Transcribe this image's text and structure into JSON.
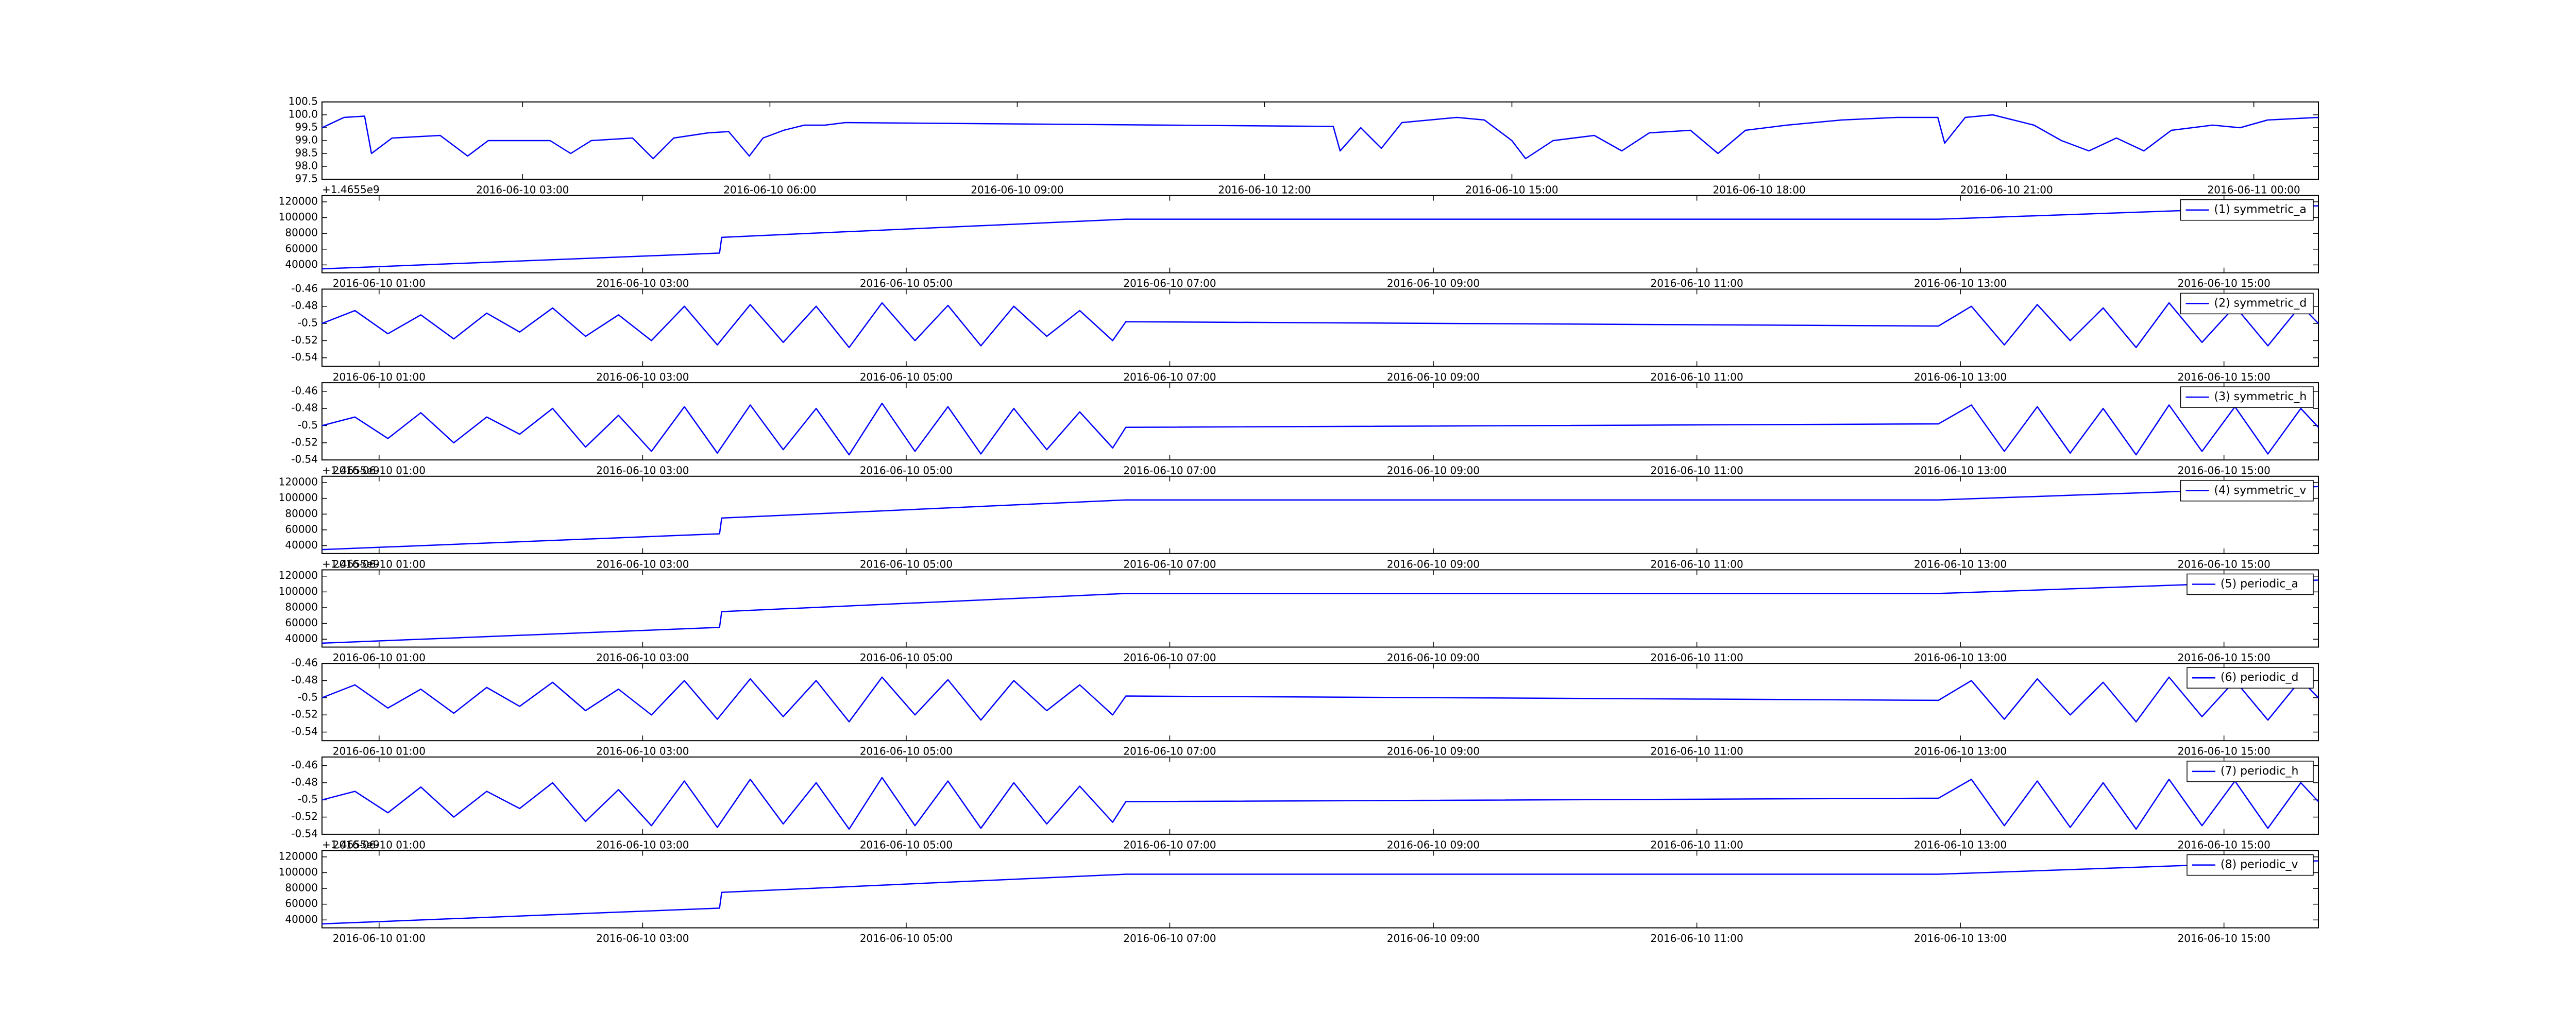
{
  "chart_data": [
    {
      "type": "line",
      "x": [
        "2016-06-10 00:34",
        "2016-06-10 00:50",
        "2016-06-10 01:05",
        "2016-06-10 01:10",
        "2016-06-10 01:25",
        "2016-06-10 02:00",
        "2016-06-10 02:20",
        "2016-06-10 02:35",
        "2016-06-10 03:20",
        "2016-06-10 03:35",
        "2016-06-10 03:50",
        "2016-06-10 04:20",
        "2016-06-10 04:35",
        "2016-06-10 04:50",
        "2016-06-10 05:15",
        "2016-06-10 05:30",
        "2016-06-10 05:45",
        "2016-06-10 05:55",
        "2016-06-10 06:10",
        "2016-06-10 06:25",
        "2016-06-10 06:40",
        "2016-06-10 06:55",
        "2016-06-10 12:50",
        "2016-06-10 12:55",
        "2016-06-10 13:10",
        "2016-06-10 13:25",
        "2016-06-10 13:40",
        "2016-06-10 14:00",
        "2016-06-10 14:20",
        "2016-06-10 14:40",
        "2016-06-10 15:00",
        "2016-06-10 15:10",
        "2016-06-10 15:30",
        "2016-06-10 16:00",
        "2016-06-10 16:20",
        "2016-06-10 16:40",
        "2016-06-10 17:10",
        "2016-06-10 17:30",
        "2016-06-10 17:50",
        "2016-06-10 18:20",
        "2016-06-10 18:40",
        "2016-06-10 19:00",
        "2016-06-10 19:40",
        "2016-06-10 20:10",
        "2016-06-10 20:15",
        "2016-06-10 20:30",
        "2016-06-10 20:50",
        "2016-06-10 21:20",
        "2016-06-10 21:40",
        "2016-06-10 22:00",
        "2016-06-10 22:20",
        "2016-06-10 22:40",
        "2016-06-10 23:00",
        "2016-06-10 23:30",
        "2016-06-10 23:50",
        "2016-06-11 00:10",
        "2016-06-11 00:47"
      ],
      "series": [
        {
          "color": "#0000ff",
          "values": [
            99.5,
            99.9,
            99.95,
            98.5,
            99.1,
            99.2,
            98.4,
            99.0,
            99.0,
            98.5,
            99.0,
            99.1,
            98.3,
            99.1,
            99.3,
            99.35,
            98.4,
            99.1,
            99.4,
            99.6,
            99.6,
            99.7,
            99.55,
            98.6,
            99.5,
            98.7,
            99.7,
            99.8,
            99.9,
            99.8,
            99.0,
            98.3,
            99.0,
            99.2,
            98.6,
            99.3,
            99.4,
            98.5,
            99.4,
            99.6,
            99.7,
            99.8,
            99.9,
            99.9,
            98.9,
            99.9,
            100.0,
            99.6,
            99.0,
            98.6,
            99.1,
            98.6,
            99.4,
            99.6,
            99.5,
            99.8,
            99.9
          ]
        }
      ],
      "xlim": [
        "2016-06-10 00:34",
        "2016-06-11 00:47"
      ],
      "xticks": [
        "2016-06-10 03:00",
        "2016-06-10 06:00",
        "2016-06-10 09:00",
        "2016-06-10 12:00",
        "2016-06-10 15:00",
        "2016-06-10 18:00",
        "2016-06-10 21:00",
        "2016-06-11 00:00"
      ],
      "ylim": [
        97.5,
        100.5
      ],
      "yticks": [
        97.5,
        {
          "value": 98,
          "label": "98.0"
        },
        98.5,
        {
          "value": 99,
          "label": "99.0"
        },
        99.5,
        {
          "value": 100,
          "label": "100.0"
        },
        100.5
      ]
    },
    {
      "type": "line",
      "y_offset_label": "+1.4655e9",
      "legend": "upper right",
      "x": [
        "2016-06-10 00:34",
        "2016-06-10 03:35",
        "2016-06-10 03:36",
        "2016-06-10 06:40",
        "2016-06-10 12:50",
        "2016-06-10 15:43"
      ],
      "series": [
        {
          "name": "(1) symmetric_a",
          "color": "#0000ff",
          "values": [
            35000,
            55000,
            75000,
            98000,
            98000,
            115000
          ]
        }
      ],
      "xlim": [
        "2016-06-10 00:34",
        "2016-06-10 15:43"
      ],
      "xticks": [
        "2016-06-10 01:00",
        "2016-06-10 03:00",
        "2016-06-10 05:00",
        "2016-06-10 07:00",
        "2016-06-10 09:00",
        "2016-06-10 11:00",
        "2016-06-10 13:00",
        "2016-06-10 15:00"
      ],
      "ylim": [
        30000,
        128000
      ],
      "yticks": [
        40000,
        60000,
        80000,
        100000,
        120000
      ]
    },
    {
      "type": "line",
      "legend": "upper right",
      "x": [
        "2016-06-10 00:34",
        "2016-06-10 00:49",
        "2016-06-10 01:04",
        "2016-06-10 01:19",
        "2016-06-10 01:34",
        "2016-06-10 01:49",
        "2016-06-10 02:04",
        "2016-06-10 02:19",
        "2016-06-10 02:34",
        "2016-06-10 02:49",
        "2016-06-10 03:04",
        "2016-06-10 03:19",
        "2016-06-10 03:34",
        "2016-06-10 03:49",
        "2016-06-10 04:04",
        "2016-06-10 04:19",
        "2016-06-10 04:34",
        "2016-06-10 04:49",
        "2016-06-10 05:04",
        "2016-06-10 05:19",
        "2016-06-10 05:34",
        "2016-06-10 05:49",
        "2016-06-10 06:04",
        "2016-06-10 06:19",
        "2016-06-10 06:34",
        "2016-06-10 06:40",
        "2016-06-10 12:50",
        "2016-06-10 13:05",
        "2016-06-10 13:20",
        "2016-06-10 13:35",
        "2016-06-10 13:50",
        "2016-06-10 14:05",
        "2016-06-10 14:20",
        "2016-06-10 14:35",
        "2016-06-10 14:50",
        "2016-06-10 15:05",
        "2016-06-10 15:20",
        "2016-06-10 15:35",
        "2016-06-10 15:43"
      ],
      "series": [
        {
          "name": "(2) symmetric_d",
          "color": "#0000ff",
          "values": [
            -0.5,
            -0.485,
            -0.512,
            -0.49,
            -0.518,
            -0.488,
            -0.51,
            -0.482,
            -0.515,
            -0.49,
            -0.52,
            -0.48,
            -0.525,
            -0.478,
            -0.522,
            -0.48,
            -0.528,
            -0.476,
            -0.52,
            -0.479,
            -0.526,
            -0.48,
            -0.515,
            -0.485,
            -0.52,
            -0.498,
            -0.503,
            -0.48,
            -0.525,
            -0.478,
            -0.52,
            -0.482,
            -0.528,
            -0.476,
            -0.522,
            -0.48,
            -0.526,
            -0.479,
            -0.5
          ]
        }
      ],
      "xlim": [
        "2016-06-10 00:34",
        "2016-06-10 15:43"
      ],
      "xticks": [
        "2016-06-10 01:00",
        "2016-06-10 03:00",
        "2016-06-10 05:00",
        "2016-06-10 07:00",
        "2016-06-10 09:00",
        "2016-06-10 11:00",
        "2016-06-10 13:00",
        "2016-06-10 15:00"
      ],
      "ylim": [
        -0.55,
        -0.46
      ],
      "yticks": [
        -0.54,
        -0.52,
        -0.5,
        -0.48,
        -0.46
      ]
    },
    {
      "type": "line",
      "legend": "upper right",
      "x": [
        "2016-06-10 00:34",
        "2016-06-10 00:49",
        "2016-06-10 01:04",
        "2016-06-10 01:19",
        "2016-06-10 01:34",
        "2016-06-10 01:49",
        "2016-06-10 02:04",
        "2016-06-10 02:19",
        "2016-06-10 02:34",
        "2016-06-10 02:49",
        "2016-06-10 03:04",
        "2016-06-10 03:19",
        "2016-06-10 03:34",
        "2016-06-10 03:49",
        "2016-06-10 04:04",
        "2016-06-10 04:19",
        "2016-06-10 04:34",
        "2016-06-10 04:49",
        "2016-06-10 05:04",
        "2016-06-10 05:19",
        "2016-06-10 05:34",
        "2016-06-10 05:49",
        "2016-06-10 06:04",
        "2016-06-10 06:19",
        "2016-06-10 06:34",
        "2016-06-10 06:40",
        "2016-06-10 12:50",
        "2016-06-10 13:05",
        "2016-06-10 13:20",
        "2016-06-10 13:35",
        "2016-06-10 13:50",
        "2016-06-10 14:05",
        "2016-06-10 14:20",
        "2016-06-10 14:35",
        "2016-06-10 14:50",
        "2016-06-10 15:05",
        "2016-06-10 15:20",
        "2016-06-10 15:35",
        "2016-06-10 15:43"
      ],
      "series": [
        {
          "name": "(3) symmetric_h",
          "color": "#0000ff",
          "values": [
            -0.5,
            -0.49,
            -0.515,
            -0.485,
            -0.52,
            -0.49,
            -0.51,
            -0.48,
            -0.525,
            -0.488,
            -0.53,
            -0.478,
            -0.532,
            -0.476,
            -0.528,
            -0.48,
            -0.534,
            -0.474,
            -0.53,
            -0.478,
            -0.533,
            -0.48,
            -0.528,
            -0.484,
            -0.526,
            -0.502,
            -0.498,
            -0.476,
            -0.53,
            -0.478,
            -0.532,
            -0.48,
            -0.534,
            -0.476,
            -0.53,
            -0.478,
            -0.533,
            -0.48,
            -0.502
          ]
        }
      ],
      "xlim": [
        "2016-06-10 00:34",
        "2016-06-10 15:43"
      ],
      "xticks": [
        "2016-06-10 01:00",
        "2016-06-10 03:00",
        "2016-06-10 05:00",
        "2016-06-10 07:00",
        "2016-06-10 09:00",
        "2016-06-10 11:00",
        "2016-06-10 13:00",
        "2016-06-10 15:00"
      ],
      "ylim": [
        -0.54,
        -0.45
      ],
      "yticks": [
        -0.54,
        -0.52,
        -0.5,
        -0.48,
        -0.46
      ]
    },
    {
      "type": "line",
      "y_offset_label": "+1.4655e9",
      "legend": "upper right",
      "x": [
        "2016-06-10 00:34",
        "2016-06-10 03:35",
        "2016-06-10 03:36",
        "2016-06-10 06:40",
        "2016-06-10 12:50",
        "2016-06-10 15:43"
      ],
      "series": [
        {
          "name": "(4) symmetric_v",
          "color": "#0000ff",
          "values": [
            35000,
            55000,
            75000,
            98000,
            98000,
            115000
          ]
        }
      ],
      "xlim": [
        "2016-06-10 00:34",
        "2016-06-10 15:43"
      ],
      "xticks": [
        "2016-06-10 01:00",
        "2016-06-10 03:00",
        "2016-06-10 05:00",
        "2016-06-10 07:00",
        "2016-06-10 09:00",
        "2016-06-10 11:00",
        "2016-06-10 13:00",
        "2016-06-10 15:00"
      ],
      "ylim": [
        30000,
        128000
      ],
      "yticks": [
        40000,
        60000,
        80000,
        100000,
        120000
      ]
    },
    {
      "type": "line",
      "y_offset_label": "+1.4655e9",
      "legend": "upper right",
      "x": [
        "2016-06-10 00:34",
        "2016-06-10 03:35",
        "2016-06-10 03:36",
        "2016-06-10 06:40",
        "2016-06-10 12:50",
        "2016-06-10 15:43"
      ],
      "series": [
        {
          "name": "(5) periodic_a",
          "color": "#0000ff",
          "values": [
            35000,
            55000,
            75000,
            98000,
            98000,
            115000
          ]
        }
      ],
      "xlim": [
        "2016-06-10 00:34",
        "2016-06-10 15:43"
      ],
      "xticks": [
        "2016-06-10 01:00",
        "2016-06-10 03:00",
        "2016-06-10 05:00",
        "2016-06-10 07:00",
        "2016-06-10 09:00",
        "2016-06-10 11:00",
        "2016-06-10 13:00",
        "2016-06-10 15:00"
      ],
      "ylim": [
        30000,
        128000
      ],
      "yticks": [
        40000,
        60000,
        80000,
        100000,
        120000
      ]
    },
    {
      "type": "line",
      "legend": "upper right",
      "x": [
        "2016-06-10 00:34",
        "2016-06-10 00:49",
        "2016-06-10 01:04",
        "2016-06-10 01:19",
        "2016-06-10 01:34",
        "2016-06-10 01:49",
        "2016-06-10 02:04",
        "2016-06-10 02:19",
        "2016-06-10 02:34",
        "2016-06-10 02:49",
        "2016-06-10 03:04",
        "2016-06-10 03:19",
        "2016-06-10 03:34",
        "2016-06-10 03:49",
        "2016-06-10 04:04",
        "2016-06-10 04:19",
        "2016-06-10 04:34",
        "2016-06-10 04:49",
        "2016-06-10 05:04",
        "2016-06-10 05:19",
        "2016-06-10 05:34",
        "2016-06-10 05:49",
        "2016-06-10 06:04",
        "2016-06-10 06:19",
        "2016-06-10 06:34",
        "2016-06-10 06:40",
        "2016-06-10 12:50",
        "2016-06-10 13:05",
        "2016-06-10 13:20",
        "2016-06-10 13:35",
        "2016-06-10 13:50",
        "2016-06-10 14:05",
        "2016-06-10 14:20",
        "2016-06-10 14:35",
        "2016-06-10 14:50",
        "2016-06-10 15:05",
        "2016-06-10 15:20",
        "2016-06-10 15:35",
        "2016-06-10 15:43"
      ],
      "series": [
        {
          "name": "(6) periodic_d",
          "color": "#0000ff",
          "values": [
            -0.5,
            -0.485,
            -0.512,
            -0.49,
            -0.518,
            -0.488,
            -0.51,
            -0.482,
            -0.515,
            -0.49,
            -0.52,
            -0.48,
            -0.525,
            -0.478,
            -0.522,
            -0.48,
            -0.528,
            -0.476,
            -0.52,
            -0.479,
            -0.526,
            -0.48,
            -0.515,
            -0.485,
            -0.52,
            -0.498,
            -0.503,
            -0.48,
            -0.525,
            -0.478,
            -0.52,
            -0.482,
            -0.528,
            -0.476,
            -0.522,
            -0.48,
            -0.526,
            -0.479,
            -0.5
          ]
        }
      ],
      "xlim": [
        "2016-06-10 00:34",
        "2016-06-10 15:43"
      ],
      "xticks": [
        "2016-06-10 01:00",
        "2016-06-10 03:00",
        "2016-06-10 05:00",
        "2016-06-10 07:00",
        "2016-06-10 09:00",
        "2016-06-10 11:00",
        "2016-06-10 13:00",
        "2016-06-10 15:00"
      ],
      "ylim": [
        -0.55,
        -0.46
      ],
      "yticks": [
        -0.54,
        -0.52,
        -0.5,
        -0.48,
        -0.46
      ]
    },
    {
      "type": "line",
      "legend": "upper right",
      "x": [
        "2016-06-10 00:34",
        "2016-06-10 00:49",
        "2016-06-10 01:04",
        "2016-06-10 01:19",
        "2016-06-10 01:34",
        "2016-06-10 01:49",
        "2016-06-10 02:04",
        "2016-06-10 02:19",
        "2016-06-10 02:34",
        "2016-06-10 02:49",
        "2016-06-10 03:04",
        "2016-06-10 03:19",
        "2016-06-10 03:34",
        "2016-06-10 03:49",
        "2016-06-10 04:04",
        "2016-06-10 04:19",
        "2016-06-10 04:34",
        "2016-06-10 04:49",
        "2016-06-10 05:04",
        "2016-06-10 05:19",
        "2016-06-10 05:34",
        "2016-06-10 05:49",
        "2016-06-10 06:04",
        "2016-06-10 06:19",
        "2016-06-10 06:34",
        "2016-06-10 06:40",
        "2016-06-10 12:50",
        "2016-06-10 13:05",
        "2016-06-10 13:20",
        "2016-06-10 13:35",
        "2016-06-10 13:50",
        "2016-06-10 14:05",
        "2016-06-10 14:20",
        "2016-06-10 14:35",
        "2016-06-10 14:50",
        "2016-06-10 15:05",
        "2016-06-10 15:20",
        "2016-06-10 15:35",
        "2016-06-10 15:43"
      ],
      "series": [
        {
          "name": "(7) periodic_h",
          "color": "#0000ff",
          "values": [
            -0.5,
            -0.49,
            -0.515,
            -0.485,
            -0.52,
            -0.49,
            -0.51,
            -0.48,
            -0.525,
            -0.488,
            -0.53,
            -0.478,
            -0.532,
            -0.476,
            -0.528,
            -0.48,
            -0.534,
            -0.474,
            -0.53,
            -0.478,
            -0.533,
            -0.48,
            -0.528,
            -0.484,
            -0.526,
            -0.502,
            -0.498,
            -0.476,
            -0.53,
            -0.478,
            -0.532,
            -0.48,
            -0.534,
            -0.476,
            -0.53,
            -0.478,
            -0.533,
            -0.48,
            -0.502
          ]
        }
      ],
      "xlim": [
        "2016-06-10 00:34",
        "2016-06-10 15:43"
      ],
      "xticks": [
        "2016-06-10 01:00",
        "2016-06-10 03:00",
        "2016-06-10 05:00",
        "2016-06-10 07:00",
        "2016-06-10 09:00",
        "2016-06-10 11:00",
        "2016-06-10 13:00",
        "2016-06-10 15:00"
      ],
      "ylim": [
        -0.54,
        -0.45
      ],
      "yticks": [
        -0.54,
        -0.52,
        -0.5,
        -0.48,
        -0.46
      ]
    },
    {
      "type": "line",
      "y_offset_label": "+1.4655e9",
      "legend": "upper right",
      "x": [
        "2016-06-10 00:34",
        "2016-06-10 03:35",
        "2016-06-10 03:36",
        "2016-06-10 06:40",
        "2016-06-10 12:50",
        "2016-06-10 15:43"
      ],
      "series": [
        {
          "name": "(8) periodic_v",
          "color": "#0000ff",
          "values": [
            35000,
            55000,
            75000,
            98000,
            98000,
            115000
          ]
        }
      ],
      "xlim": [
        "2016-06-10 00:34",
        "2016-06-10 15:43"
      ],
      "xticks": [
        "2016-06-10 01:00",
        "2016-06-10 03:00",
        "2016-06-10 05:00",
        "2016-06-10 07:00",
        "2016-06-10 09:00",
        "2016-06-10 11:00",
        "2016-06-10 13:00",
        "2016-06-10 15:00"
      ],
      "ylim": [
        30000,
        128000
      ],
      "yticks": [
        40000,
        60000,
        80000,
        100000,
        120000
      ]
    }
  ]
}
